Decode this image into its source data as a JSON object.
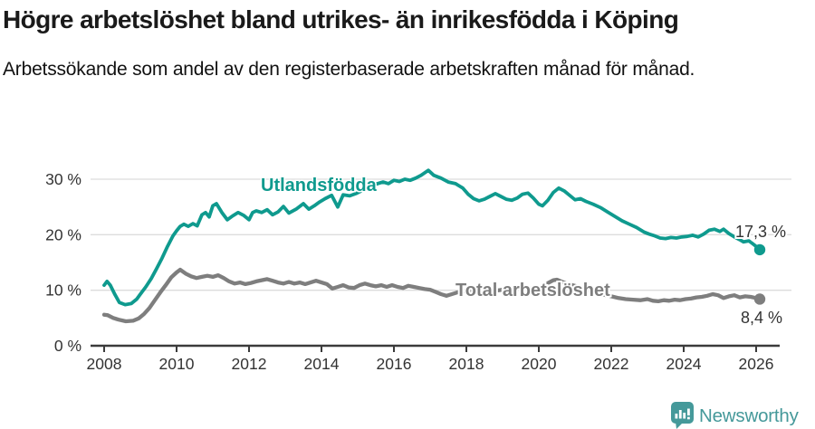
{
  "header": {
    "title": "Högre arbetslöshet bland utrikes- än inrikesfödda i Köping",
    "subtitle": "Arbetssökande som andel av den registerbaserade arbetskraften månad för månad."
  },
  "chart_data": {
    "type": "line",
    "title": "Högre arbetslöshet bland utrikes- än inrikesfödda i Köping",
    "subtitle": "Arbetssökande som andel av den registerbaserade arbetskraften månad för månad.",
    "grid": "horizontal-only",
    "x_axis": {
      "ticks": [
        2008,
        2010,
        2012,
        2014,
        2016,
        2018,
        2020,
        2022,
        2024,
        2026
      ],
      "range": [
        2007.6,
        2026.7
      ]
    },
    "y_axis": {
      "unit": "%",
      "ticks": [
        0,
        10,
        20,
        30
      ],
      "tick_labels": [
        "0 %",
        "10 %",
        "20 %",
        "30 %"
      ],
      "range": [
        0,
        33
      ]
    },
    "series": [
      {
        "name": "Utlandsfödda",
        "color": "#0f9a8e",
        "end_value": 17.3,
        "end_label": "17,3 %",
        "points": [
          [
            2008.0,
            10.9
          ],
          [
            2008.08,
            11.6
          ],
          [
            2008.17,
            10.9
          ],
          [
            2008.3,
            9.2
          ],
          [
            2008.42,
            7.8
          ],
          [
            2008.58,
            7.4
          ],
          [
            2008.75,
            7.6
          ],
          [
            2008.9,
            8.4
          ],
          [
            2009.0,
            9.3
          ],
          [
            2009.15,
            10.6
          ],
          [
            2009.3,
            12.1
          ],
          [
            2009.45,
            13.9
          ],
          [
            2009.6,
            15.8
          ],
          [
            2009.75,
            17.9
          ],
          [
            2009.9,
            19.8
          ],
          [
            2010.0,
            20.7
          ],
          [
            2010.1,
            21.5
          ],
          [
            2010.2,
            21.9
          ],
          [
            2010.32,
            21.5
          ],
          [
            2010.45,
            22.0
          ],
          [
            2010.57,
            21.6
          ],
          [
            2010.7,
            23.6
          ],
          [
            2010.8,
            24.0
          ],
          [
            2010.9,
            23.2
          ],
          [
            2011.0,
            25.2
          ],
          [
            2011.1,
            25.6
          ],
          [
            2011.25,
            24.0
          ],
          [
            2011.4,
            22.7
          ],
          [
            2011.55,
            23.4
          ],
          [
            2011.7,
            24.0
          ],
          [
            2011.85,
            23.5
          ],
          [
            2012.0,
            22.7
          ],
          [
            2012.1,
            24.0
          ],
          [
            2012.2,
            24.3
          ],
          [
            2012.35,
            24.0
          ],
          [
            2012.5,
            24.5
          ],
          [
            2012.65,
            23.6
          ],
          [
            2012.8,
            24.1
          ],
          [
            2012.95,
            25.1
          ],
          [
            2013.1,
            23.9
          ],
          [
            2013.3,
            24.6
          ],
          [
            2013.5,
            25.6
          ],
          [
            2013.65,
            24.6
          ],
          [
            2013.8,
            25.2
          ],
          [
            2013.95,
            25.9
          ],
          [
            2014.1,
            26.5
          ],
          [
            2014.28,
            27.1
          ],
          [
            2014.45,
            25.0
          ],
          [
            2014.6,
            27.2
          ],
          [
            2014.78,
            27.0
          ],
          [
            2014.95,
            27.4
          ],
          [
            2015.1,
            27.9
          ],
          [
            2015.3,
            28.5
          ],
          [
            2015.5,
            29.1
          ],
          [
            2015.7,
            29.5
          ],
          [
            2015.85,
            29.2
          ],
          [
            2016.0,
            29.8
          ],
          [
            2016.15,
            29.6
          ],
          [
            2016.3,
            30.0
          ],
          [
            2016.45,
            29.8
          ],
          [
            2016.6,
            30.2
          ],
          [
            2016.75,
            30.7
          ],
          [
            2016.95,
            31.6
          ],
          [
            2017.1,
            30.7
          ],
          [
            2017.3,
            30.2
          ],
          [
            2017.5,
            29.5
          ],
          [
            2017.7,
            29.2
          ],
          [
            2017.9,
            28.4
          ],
          [
            2018.05,
            27.3
          ],
          [
            2018.2,
            26.5
          ],
          [
            2018.35,
            26.1
          ],
          [
            2018.5,
            26.4
          ],
          [
            2018.65,
            26.9
          ],
          [
            2018.8,
            27.4
          ],
          [
            2018.95,
            26.9
          ],
          [
            2019.1,
            26.4
          ],
          [
            2019.25,
            26.2
          ],
          [
            2019.4,
            26.6
          ],
          [
            2019.55,
            27.3
          ],
          [
            2019.7,
            27.5
          ],
          [
            2019.85,
            26.6
          ],
          [
            2020.0,
            25.5
          ],
          [
            2020.1,
            25.2
          ],
          [
            2020.25,
            26.2
          ],
          [
            2020.4,
            27.6
          ],
          [
            2020.55,
            28.4
          ],
          [
            2020.7,
            27.9
          ],
          [
            2020.85,
            27.1
          ],
          [
            2021.0,
            26.3
          ],
          [
            2021.15,
            26.5
          ],
          [
            2021.3,
            26.0
          ],
          [
            2021.5,
            25.5
          ],
          [
            2021.7,
            24.9
          ],
          [
            2021.9,
            24.1
          ],
          [
            2022.1,
            23.3
          ],
          [
            2022.3,
            22.5
          ],
          [
            2022.5,
            21.9
          ],
          [
            2022.7,
            21.3
          ],
          [
            2022.9,
            20.5
          ],
          [
            2023.05,
            20.1
          ],
          [
            2023.2,
            19.8
          ],
          [
            2023.35,
            19.4
          ],
          [
            2023.5,
            19.3
          ],
          [
            2023.65,
            19.5
          ],
          [
            2023.8,
            19.4
          ],
          [
            2023.95,
            19.6
          ],
          [
            2024.1,
            19.7
          ],
          [
            2024.25,
            19.9
          ],
          [
            2024.4,
            19.6
          ],
          [
            2024.55,
            20.1
          ],
          [
            2024.7,
            20.8
          ],
          [
            2024.85,
            21.0
          ],
          [
            2025.0,
            20.6
          ],
          [
            2025.1,
            21.0
          ],
          [
            2025.25,
            20.2
          ],
          [
            2025.4,
            19.6
          ],
          [
            2025.55,
            19.1
          ],
          [
            2025.65,
            18.7
          ],
          [
            2025.8,
            18.9
          ],
          [
            2025.9,
            18.4
          ],
          [
            2026.0,
            17.9
          ],
          [
            2026.1,
            17.3
          ]
        ]
      },
      {
        "name": "Total arbetslöshet",
        "color": "#7e7e7e",
        "end_value": 8.4,
        "end_label": "8,4 %",
        "points": [
          [
            2008.0,
            5.6
          ],
          [
            2008.1,
            5.5
          ],
          [
            2008.25,
            5.0
          ],
          [
            2008.4,
            4.7
          ],
          [
            2008.6,
            4.4
          ],
          [
            2008.8,
            4.5
          ],
          [
            2008.95,
            4.9
          ],
          [
            2009.1,
            5.7
          ],
          [
            2009.25,
            6.8
          ],
          [
            2009.4,
            8.2
          ],
          [
            2009.55,
            9.6
          ],
          [
            2009.7,
            10.9
          ],
          [
            2009.85,
            12.3
          ],
          [
            2010.0,
            13.2
          ],
          [
            2010.1,
            13.7
          ],
          [
            2010.25,
            13.0
          ],
          [
            2010.4,
            12.5
          ],
          [
            2010.55,
            12.2
          ],
          [
            2010.7,
            12.4
          ],
          [
            2010.85,
            12.6
          ],
          [
            2011.0,
            12.4
          ],
          [
            2011.15,
            12.7
          ],
          [
            2011.3,
            12.2
          ],
          [
            2011.45,
            11.6
          ],
          [
            2011.6,
            11.2
          ],
          [
            2011.75,
            11.4
          ],
          [
            2011.9,
            11.1
          ],
          [
            2012.05,
            11.3
          ],
          [
            2012.2,
            11.6
          ],
          [
            2012.35,
            11.8
          ],
          [
            2012.5,
            12.0
          ],
          [
            2012.65,
            11.7
          ],
          [
            2012.8,
            11.4
          ],
          [
            2012.95,
            11.2
          ],
          [
            2013.1,
            11.5
          ],
          [
            2013.25,
            11.2
          ],
          [
            2013.4,
            11.4
          ],
          [
            2013.55,
            11.1
          ],
          [
            2013.7,
            11.4
          ],
          [
            2013.85,
            11.7
          ],
          [
            2014.0,
            11.4
          ],
          [
            2014.15,
            11.1
          ],
          [
            2014.3,
            10.3
          ],
          [
            2014.45,
            10.6
          ],
          [
            2014.6,
            10.9
          ],
          [
            2014.75,
            10.5
          ],
          [
            2014.9,
            10.4
          ],
          [
            2015.05,
            10.9
          ],
          [
            2015.2,
            11.2
          ],
          [
            2015.35,
            10.9
          ],
          [
            2015.5,
            10.7
          ],
          [
            2015.65,
            10.9
          ],
          [
            2015.8,
            10.6
          ],
          [
            2015.95,
            10.9
          ],
          [
            2016.1,
            10.6
          ],
          [
            2016.25,
            10.4
          ],
          [
            2016.4,
            10.8
          ],
          [
            2016.55,
            10.6
          ],
          [
            2016.7,
            10.4
          ],
          [
            2016.85,
            10.2
          ],
          [
            2017.0,
            10.1
          ],
          [
            2017.15,
            9.7
          ],
          [
            2017.3,
            9.3
          ],
          [
            2017.45,
            9.0
          ],
          [
            2017.6,
            9.3
          ],
          [
            2017.8,
            9.7
          ],
          [
            2018.0,
            9.9
          ],
          [
            2018.2,
            10.1
          ],
          [
            2018.4,
            9.9
          ],
          [
            2018.6,
            9.7
          ],
          [
            2018.8,
            9.9
          ],
          [
            2019.0,
            10.1
          ],
          [
            2019.2,
            10.2
          ],
          [
            2019.4,
            10.4
          ],
          [
            2019.6,
            10.5
          ],
          [
            2019.8,
            10.3
          ],
          [
            2020.0,
            10.4
          ],
          [
            2020.2,
            11.1
          ],
          [
            2020.4,
            11.8
          ],
          [
            2020.5,
            11.9
          ],
          [
            2020.65,
            11.5
          ],
          [
            2020.8,
            11.1
          ],
          [
            2021.0,
            10.8
          ],
          [
            2021.2,
            10.4
          ],
          [
            2021.4,
            10.0
          ],
          [
            2021.6,
            9.6
          ],
          [
            2021.8,
            9.2
          ],
          [
            2022.0,
            8.9
          ],
          [
            2022.2,
            8.6
          ],
          [
            2022.4,
            8.4
          ],
          [
            2022.6,
            8.3
          ],
          [
            2022.8,
            8.2
          ],
          [
            2023.0,
            8.4
          ],
          [
            2023.15,
            8.1
          ],
          [
            2023.3,
            8.0
          ],
          [
            2023.45,
            8.2
          ],
          [
            2023.6,
            8.1
          ],
          [
            2023.75,
            8.3
          ],
          [
            2023.9,
            8.2
          ],
          [
            2024.05,
            8.4
          ],
          [
            2024.2,
            8.5
          ],
          [
            2024.35,
            8.7
          ],
          [
            2024.5,
            8.8
          ],
          [
            2024.65,
            9.0
          ],
          [
            2024.8,
            9.3
          ],
          [
            2024.95,
            9.1
          ],
          [
            2025.1,
            8.6
          ],
          [
            2025.25,
            8.9
          ],
          [
            2025.4,
            9.1
          ],
          [
            2025.55,
            8.7
          ],
          [
            2025.7,
            8.9
          ],
          [
            2025.85,
            8.8
          ],
          [
            2026.0,
            8.6
          ],
          [
            2026.1,
            8.4
          ]
        ]
      }
    ],
    "colors": {
      "accent_teal": "#0f9a8e",
      "series_gray": "#7e7e7e",
      "gridline": "#dcdcdc",
      "axis": "#3b3b3b",
      "text": "#333333"
    },
    "legend_position": "inline-labels"
  },
  "footer": {
    "brand": "Newsworthy",
    "brand_color": "#45999a"
  }
}
